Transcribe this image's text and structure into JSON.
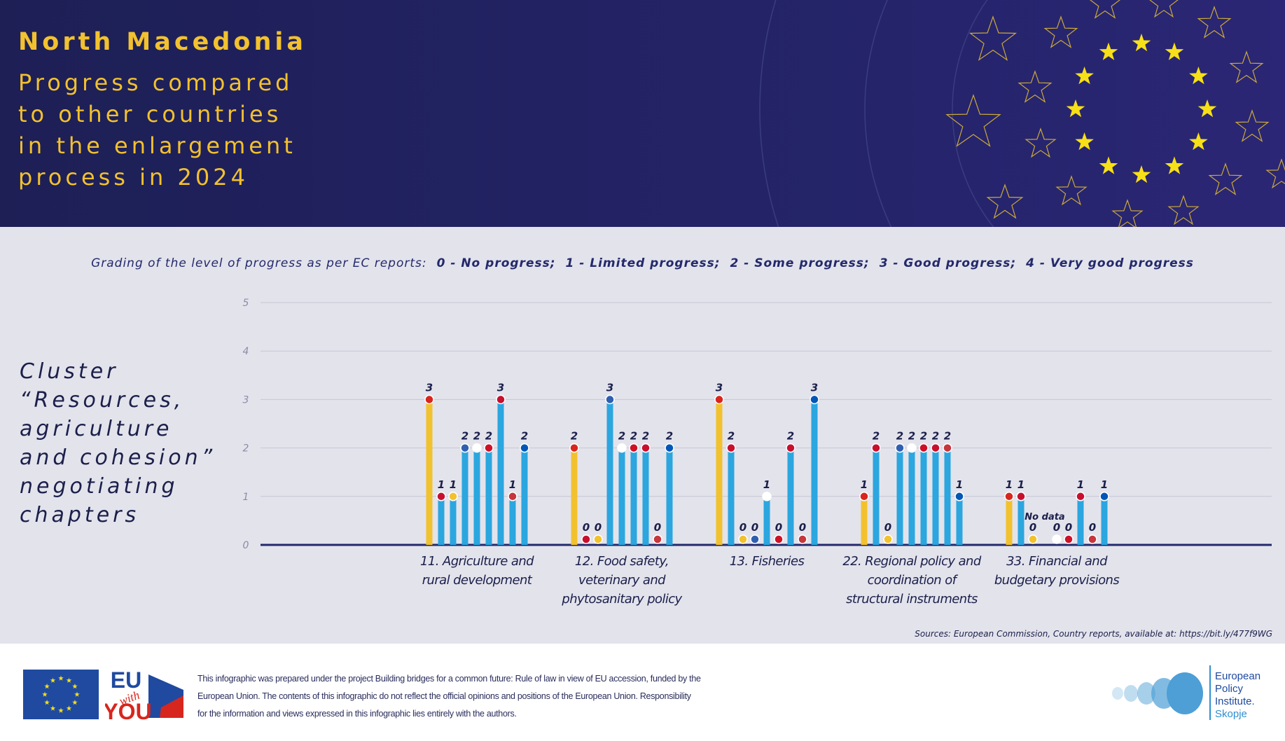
{
  "chart_data": {
    "type": "bar",
    "title": "North Macedonia",
    "subtitle_lines": [
      "Progress compared",
      "to other countries",
      "in the enlargement",
      "process in 2024"
    ],
    "grading": {
      "intro": "Grading of the level of progress as per EC reports:",
      "items": [
        "0 - No progress;",
        "1 - Limited progress;",
        "2 - Some progress;",
        "3 - Good progress;",
        "4 - Very good progress"
      ]
    },
    "side_heading_lines": [
      "Cluster",
      "“Resources,",
      "agriculture",
      "and cohesion”",
      "negotiating",
      "chapters"
    ],
    "categories": [
      "11. Agriculture and rural development",
      "12. Food safety, veterinary and phytosanitary policy",
      "13. Fisheries",
      "22. Regional policy and coordination of structural instruments",
      "33. Financial and budgetary provisions"
    ],
    "series": [
      {
        "color": "#f2c12e",
        "values": [
          3,
          2,
          3,
          1,
          1
        ]
      },
      {
        "color": "#2ba6df",
        "values": [
          1,
          0,
          2,
          2,
          1
        ]
      },
      {
        "color": "#2ba6df",
        "values": [
          1,
          0,
          0,
          0,
          0
        ]
      },
      {
        "color": "#2ba6df",
        "values": [
          2,
          3,
          0,
          2,
          null
        ],
        "value_labels": [
          "2",
          "3",
          "0",
          "2",
          "No data"
        ]
      },
      {
        "color": "#2ba6df",
        "values": [
          2,
          2,
          1,
          2,
          0
        ]
      },
      {
        "color": "#2ba6df",
        "values": [
          2,
          2,
          0,
          2,
          0
        ]
      },
      {
        "color": "#2ba6df",
        "values": [
          3,
          2,
          2,
          2,
          1
        ]
      },
      {
        "color": "#2ba6df",
        "values": [
          1,
          0,
          0,
          2,
          0
        ]
      },
      {
        "color": "#2ba6df",
        "values": [
          2,
          2,
          3,
          1,
          1
        ]
      }
    ],
    "ylim": [
      0,
      5
    ],
    "yticks": [
      0,
      1,
      2,
      3,
      4,
      5
    ],
    "grid": true,
    "source": "Sources: European Commission, Country reports, available at: https://bit.ly/477f9WG"
  },
  "footer": {
    "disclaimer": "This infographic was prepared under the project Building bridges for a common future: Rule of law in view of EU accession, funded by the European Union. The contents of this infographic do not reflect the official opinions and positions of the European Union. Responsibility for the information and views expressed in this infographic lies entirely with the authors.",
    "logo_eu": "EU",
    "logo_with": "with",
    "logo_you": "YOU",
    "epi_lines": [
      "European",
      "Policy",
      "Institute."
    ],
    "epi_city": "Skopje"
  }
}
